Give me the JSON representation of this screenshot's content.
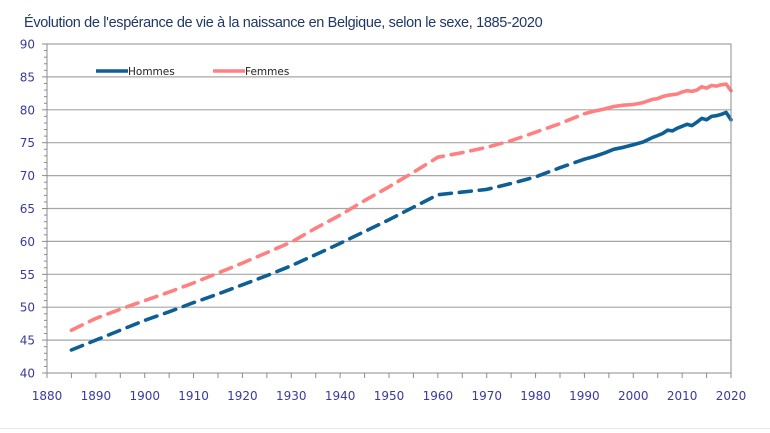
{
  "chart_data": {
    "type": "line",
    "title": "Évolution de l'espérance de vie à la naissance en Belgique, selon le sexe, 1885-2020",
    "xlabel": "",
    "ylabel": "",
    "xlim": [
      1880,
      2020
    ],
    "ylim": [
      40,
      90
    ],
    "grid": true,
    "legend_position": "top-left",
    "x_ticks": [
      "1880",
      "1890",
      "1900",
      "1910",
      "1920",
      "1930",
      "1940",
      "1950",
      "1960",
      "1970",
      "1980",
      "1990",
      "2000",
      "2010",
      "2020"
    ],
    "y_ticks": [
      "40",
      "45",
      "50",
      "55",
      "60",
      "65",
      "70",
      "75",
      "80",
      "85",
      "90"
    ],
    "series": [
      {
        "name": "Hommes",
        "color": "#0e6094",
        "dashed_until": 1990,
        "x": [
          1885,
          1890,
          1895,
          1900,
          1905,
          1910,
          1915,
          1920,
          1925,
          1930,
          1935,
          1940,
          1945,
          1950,
          1955,
          1960,
          1965,
          1970,
          1975,
          1980,
          1985,
          1990,
          1992,
          1994,
          1996,
          1998,
          2000,
          2002,
          2004,
          2005,
          2006,
          2007,
          2008,
          2009,
          2010,
          2011,
          2012,
          2013,
          2014,
          2015,
          2016,
          2017,
          2018,
          2019,
          2020
        ],
        "values": [
          43.5,
          45.0,
          46.5,
          48.0,
          49.3,
          50.7,
          52.0,
          53.4,
          54.8,
          56.3,
          58.0,
          59.7,
          61.5,
          63.3,
          65.2,
          67.1,
          67.5,
          67.9,
          68.8,
          69.8,
          71.2,
          72.5,
          72.9,
          73.4,
          74.0,
          74.3,
          74.7,
          75.1,
          75.8,
          76.1,
          76.4,
          76.9,
          76.8,
          77.2,
          77.5,
          77.8,
          77.6,
          78.1,
          78.7,
          78.5,
          79.0,
          79.1,
          79.3,
          79.6,
          78.5
        ]
      },
      {
        "name": "Femmes",
        "color": "#ff8080",
        "dashed_until": 1990,
        "x": [
          1885,
          1890,
          1895,
          1900,
          1905,
          1910,
          1915,
          1920,
          1925,
          1930,
          1935,
          1940,
          1945,
          1950,
          1955,
          1960,
          1965,
          1970,
          1975,
          1980,
          1985,
          1990,
          1992,
          1994,
          1996,
          1998,
          2000,
          2002,
          2004,
          2005,
          2006,
          2007,
          2008,
          2009,
          2010,
          2011,
          2012,
          2013,
          2014,
          2015,
          2016,
          2017,
          2018,
          2019,
          2020
        ],
        "values": [
          46.5,
          48.3,
          49.7,
          51.0,
          52.3,
          53.7,
          55.2,
          56.7,
          58.3,
          59.9,
          62.0,
          64.0,
          66.2,
          68.3,
          70.5,
          72.8,
          73.5,
          74.3,
          75.3,
          76.6,
          77.9,
          79.4,
          79.8,
          80.1,
          80.5,
          80.7,
          80.8,
          81.1,
          81.6,
          81.7,
          82.0,
          82.2,
          82.3,
          82.4,
          82.7,
          82.9,
          82.8,
          83.0,
          83.5,
          83.3,
          83.7,
          83.6,
          83.8,
          83.9,
          82.9
        ]
      }
    ]
  }
}
